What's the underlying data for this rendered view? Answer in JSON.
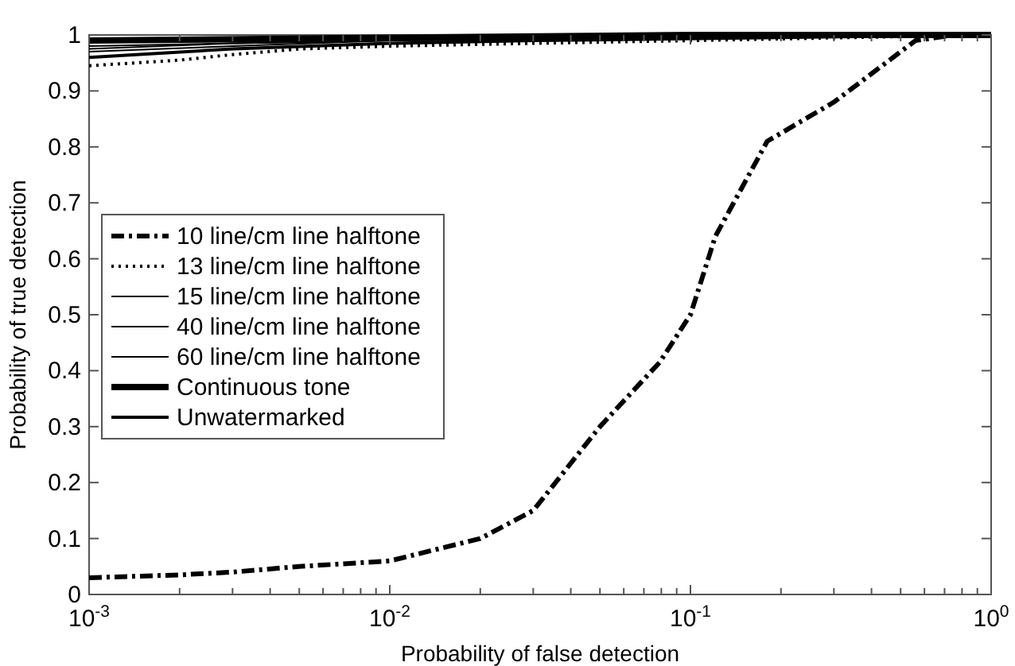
{
  "chart_data": {
    "type": "line",
    "xlabel": "Probability of false detection",
    "ylabel": "Probability of true detection",
    "log": "x",
    "xlim": [
      0.001,
      1
    ],
    "ylim": [
      0,
      1
    ],
    "xticks": [
      {
        "value": 0.001,
        "label": "10$^{-3}$"
      },
      {
        "value": 0.002,
        "label": null
      },
      {
        "value": 0.003,
        "label": null
      },
      {
        "value": 0.004,
        "label": null
      },
      {
        "value": 0.005,
        "label": null
      },
      {
        "value": 0.006,
        "label": null
      },
      {
        "value": 0.007,
        "label": null
      },
      {
        "value": 0.008,
        "label": null
      },
      {
        "value": 0.009,
        "label": null
      },
      {
        "value": 0.01,
        "label": "10$^{-2}$"
      },
      {
        "value": 0.02,
        "label": null
      },
      {
        "value": 0.03,
        "label": null
      },
      {
        "value": 0.04,
        "label": null
      },
      {
        "value": 0.05,
        "label": null
      },
      {
        "value": 0.06,
        "label": null
      },
      {
        "value": 0.07,
        "label": null
      },
      {
        "value": 0.08,
        "label": null
      },
      {
        "value": 0.09,
        "label": null
      },
      {
        "value": 0.1,
        "label": "10$^{-1}$"
      },
      {
        "value": 0.2,
        "label": null
      },
      {
        "value": 0.3,
        "label": null
      },
      {
        "value": 0.4,
        "label": null
      },
      {
        "value": 0.5,
        "label": null
      },
      {
        "value": 0.6,
        "label": null
      },
      {
        "value": 0.7,
        "label": null
      },
      {
        "value": 0.8,
        "label": null
      },
      {
        "value": 0.9,
        "label": null
      },
      {
        "value": 1,
        "label": "10$^{0}$"
      }
    ],
    "yticks": [
      0,
      0.1,
      0.2,
      0.3,
      0.4,
      0.5,
      0.6,
      0.7,
      0.8,
      0.9,
      1
    ],
    "grid": false,
    "legend": "left",
    "series": [
      {
        "name": "10 line/cm line halftone",
        "color": "#000000",
        "line_style": "dashdot",
        "x": [
          0.001,
          0.002,
          0.003,
          0.005,
          0.01,
          0.02,
          0.03,
          0.05,
          0.079,
          0.1,
          0.121,
          0.18,
          0.3,
          0.56,
          0.76,
          1
        ],
        "values": [
          0.03,
          0.035,
          0.04,
          0.05,
          0.06,
          0.1,
          0.15,
          0.3,
          0.415,
          0.5,
          0.64,
          0.81,
          0.88,
          0.99,
          1,
          1
        ]
      },
      {
        "name": "13 line/cm line halftone",
        "color": "#000000",
        "line_style": "dotted",
        "x": [
          0.001,
          0.002,
          0.003,
          0.005,
          0.01,
          0.03,
          0.1,
          1
        ],
        "values": [
          0.945,
          0.955,
          0.965,
          0.975,
          0.98,
          0.985,
          0.99,
          1
        ]
      },
      {
        "name": "15 line/cm line halftone",
        "color": "#000000",
        "line_style": "solid",
        "x": [
          0.001,
          0.003,
          0.01,
          0.1,
          1
        ],
        "values": [
          0.97,
          0.98,
          0.99,
          0.995,
          1
        ]
      },
      {
        "name": "40 line/cm line halftone",
        "color": "#000000",
        "line_style": "solid",
        "x": [
          0.001,
          0.003,
          0.01,
          0.1,
          1
        ],
        "values": [
          0.975,
          0.985,
          0.99,
          0.995,
          1
        ]
      },
      {
        "name": "60 line/cm line halftone",
        "color": "#000000",
        "line_style": "solid",
        "x": [
          0.001,
          0.003,
          0.01,
          0.1,
          1
        ],
        "values": [
          0.98,
          0.985,
          0.99,
          0.995,
          1
        ]
      },
      {
        "name": "Continuous tone",
        "color": "#000000",
        "line_style": "solid",
        "x": [
          0.001,
          0.01,
          0.1,
          1
        ],
        "values": [
          0.99,
          0.995,
          1,
          1
        ]
      },
      {
        "name": "Unwatermarked",
        "color": "#000000",
        "line_style": "solid",
        "x": [
          0.001,
          0.003,
          0.01,
          0.03,
          1
        ],
        "values": [
          0.96,
          0.975,
          0.985,
          0.99,
          1
        ]
      }
    ]
  }
}
